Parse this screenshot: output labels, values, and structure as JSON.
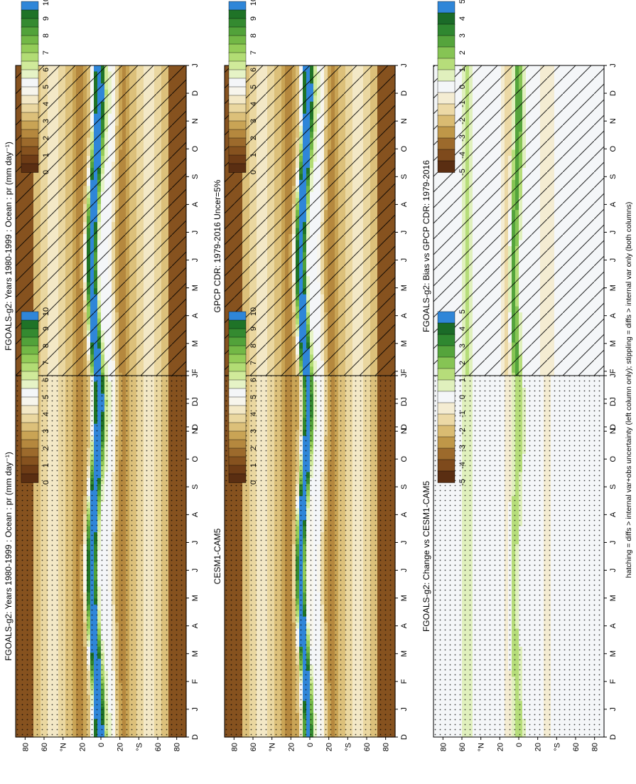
{
  "figure": {
    "footer": "hatching = diffs > internal var+obs uncertainty (left column only); stippling = diffs > internal var only (both columns)"
  },
  "colors": {
    "abs_scale": [
      "#5a2e12",
      "#6e3c16",
      "#86521f",
      "#9c6a2c",
      "#b5883e",
      "#c9a455",
      "#dcc07a",
      "#ead7a0",
      "#f3e8c6",
      "#f7f5ec",
      "#f4f6f8",
      "#e6f3c6",
      "#d0ea9a",
      "#b2dc74",
      "#94cc58",
      "#73b846",
      "#52a23a",
      "#348a30",
      "#1f7327",
      "#2f86d8"
    ],
    "diff_scale": [
      "#5a2e12",
      "#7e4a1c",
      "#9c6a2c",
      "#bf9748",
      "#d9bb72",
      "#ecd9a6",
      "#f4ecd2",
      "#f4f6f8",
      "#e0f0bd",
      "#b6dd7a",
      "#86c454",
      "#55a43c",
      "#2f8730",
      "#1b6b28",
      "#2f86d8"
    ]
  },
  "panels": [
    {
      "title": "FGOALS-g2: Years 1980-1999 : Ocean : pr (mm day⁻¹)",
      "overlay": "hatch",
      "colorbar": {
        "labels": [
          "0",
          "1",
          "2",
          "3",
          "4",
          "5",
          "6",
          "7",
          "8",
          "9",
          "10"
        ]
      },
      "axes": {
        "y_ticks": [
          "80",
          "60",
          "°N",
          "20",
          "0",
          "20",
          "°S",
          "60",
          "80"
        ],
        "x_ticks": [
          "D",
          "J",
          "F",
          "M",
          "A",
          "M",
          "J",
          "J",
          "A",
          "S",
          "O",
          "N",
          "D",
          "J"
        ]
      }
    },
    {
      "title": "FGOALS-g2: Years 1980-1999 : Ocean : pr (mm day⁻¹)",
      "overlay": "stipple",
      "colorbar": {
        "labels": [
          "0",
          "1",
          "2",
          "3",
          "4",
          "5",
          "6",
          "7",
          "8",
          "9",
          "10"
        ]
      },
      "axes": {
        "y_ticks": [
          "80",
          "60",
          "°N",
          "20",
          "0",
          "20",
          "°S",
          "60",
          "80"
        ],
        "x_ticks": [
          "D",
          "J",
          "F",
          "M",
          "A",
          "M",
          "J",
          "J",
          "A",
          "S",
          "O",
          "N",
          "D",
          "J"
        ]
      }
    },
    {
      "title": "GPCP CDR: 1979-2016 Uncer=5%",
      "overlay": "hatch",
      "colorbar": {
        "labels": [
          "0",
          "1",
          "2",
          "3",
          "4",
          "5",
          "6",
          "7",
          "8",
          "9",
          "10"
        ]
      },
      "axes": {
        "y_ticks": [
          "80",
          "60",
          "°N",
          "20",
          "0",
          "20",
          "°S",
          "60",
          "80"
        ],
        "x_ticks": [
          "D",
          "J",
          "F",
          "M",
          "A",
          "M",
          "J",
          "J",
          "A",
          "S",
          "O",
          "N",
          "D",
          "J"
        ]
      }
    },
    {
      "title": "CESM1-CAM5",
      "overlay": "stipple",
      "colorbar": {
        "labels": [
          "0",
          "1",
          "2",
          "3",
          "4",
          "5",
          "6",
          "7",
          "8",
          "9",
          "10"
        ]
      },
      "axes": {
        "y_ticks": [
          "80",
          "60",
          "°N",
          "20",
          "0",
          "20",
          "°S",
          "60",
          "80"
        ],
        "x_ticks": [
          "D",
          "J",
          "F",
          "M",
          "A",
          "M",
          "J",
          "J",
          "A",
          "S",
          "O",
          "N",
          "D",
          "J"
        ]
      }
    },
    {
      "title": "FGOALS-g2: Bias vs GPCP CDR: 1979-2016",
      "overlay": "hatch",
      "colorbar": {
        "labels": [
          "-5",
          "-4",
          "-3",
          "-2",
          "-1",
          "0",
          "1",
          "2",
          "3",
          "4",
          "5"
        ]
      },
      "axes": {
        "y_ticks": [
          "80",
          "60",
          "°N",
          "20",
          "0",
          "20",
          "°S",
          "60",
          "80"
        ],
        "x_ticks": [
          "D",
          "J",
          "F",
          "M",
          "A",
          "M",
          "J",
          "J",
          "A",
          "S",
          "O",
          "N",
          "D",
          "J"
        ]
      }
    },
    {
      "title": "FGOALS-g2: Change vs CESM1-CAM5",
      "overlay": "stipple",
      "colorbar": {
        "labels": [
          "-5",
          "-4",
          "-3",
          "-2",
          "-1",
          "0",
          "1",
          "2",
          "3",
          "4",
          "5"
        ]
      },
      "axes": {
        "y_ticks": [
          "80",
          "60",
          "°N",
          "20",
          "0",
          "20",
          "°S",
          "60",
          "80"
        ],
        "x_ticks": [
          "D",
          "J",
          "F",
          "M",
          "A",
          "M",
          "J",
          "J",
          "A",
          "S",
          "O",
          "N",
          "D",
          "J"
        ]
      }
    }
  ],
  "chart_data": [
    {
      "type": "heatmap",
      "title": "FGOALS-g2: Years 1980-1999 : Ocean : pr (mm day⁻¹)",
      "x": [
        "D",
        "J",
        "F",
        "M",
        "A",
        "M",
        "J",
        "J",
        "A",
        "S",
        "O",
        "N",
        "D",
        "J"
      ],
      "y": [
        "80S",
        "60S",
        "40S",
        "20S",
        "0",
        "20N",
        "40N",
        "60N",
        "80N"
      ],
      "z_range": [
        0,
        10
      ],
      "colorbar_ticks": [
        0,
        1,
        2,
        3,
        4,
        5,
        6,
        7,
        8,
        9,
        10
      ]
    },
    {
      "type": "heatmap",
      "title": "FGOALS-g2: Years 1980-1999 : Ocean : pr (mm day⁻¹)",
      "x": [
        "D",
        "J",
        "F",
        "M",
        "A",
        "M",
        "J",
        "J",
        "A",
        "S",
        "O",
        "N",
        "D",
        "J"
      ],
      "y": [
        "80S",
        "60S",
        "40S",
        "20S",
        "0",
        "20N",
        "40N",
        "60N",
        "80N"
      ],
      "z_range": [
        0,
        10
      ],
      "colorbar_ticks": [
        0,
        1,
        2,
        3,
        4,
        5,
        6,
        7,
        8,
        9,
        10
      ]
    },
    {
      "type": "heatmap",
      "title": "GPCP CDR: 1979-2016 Uncer=5%",
      "x": [
        "D",
        "J",
        "F",
        "M",
        "A",
        "M",
        "J",
        "J",
        "A",
        "S",
        "O",
        "N",
        "D",
        "J"
      ],
      "y": [
        "80S",
        "60S",
        "40S",
        "20S",
        "0",
        "20N",
        "40N",
        "60N",
        "80N"
      ],
      "z_range": [
        0,
        10
      ],
      "colorbar_ticks": [
        0,
        1,
        2,
        3,
        4,
        5,
        6,
        7,
        8,
        9,
        10
      ]
    },
    {
      "type": "heatmap",
      "title": "CESM1-CAM5",
      "x": [
        "D",
        "J",
        "F",
        "M",
        "A",
        "M",
        "J",
        "J",
        "A",
        "S",
        "O",
        "N",
        "D",
        "J"
      ],
      "y": [
        "80S",
        "60S",
        "40S",
        "20S",
        "0",
        "20N",
        "40N",
        "60N",
        "80N"
      ],
      "z_range": [
        0,
        10
      ],
      "colorbar_ticks": [
        0,
        1,
        2,
        3,
        4,
        5,
        6,
        7,
        8,
        9,
        10
      ]
    },
    {
      "type": "heatmap",
      "title": "FGOALS-g2: Bias vs GPCP CDR: 1979-2016",
      "x": [
        "D",
        "J",
        "F",
        "M",
        "A",
        "M",
        "J",
        "J",
        "A",
        "S",
        "O",
        "N",
        "D",
        "J"
      ],
      "y": [
        "80S",
        "60S",
        "40S",
        "20S",
        "0",
        "20N",
        "40N",
        "60N",
        "80N"
      ],
      "z_range": [
        -5,
        5
      ],
      "colorbar_ticks": [
        -5,
        -4,
        -3,
        -2,
        -1,
        0,
        1,
        2,
        3,
        4,
        5
      ]
    },
    {
      "type": "heatmap",
      "title": "FGOALS-g2: Change vs CESM1-CAM5",
      "x": [
        "D",
        "J",
        "F",
        "M",
        "A",
        "M",
        "J",
        "J",
        "A",
        "S",
        "O",
        "N",
        "D",
        "J"
      ],
      "y": [
        "80S",
        "60S",
        "40S",
        "20S",
        "0",
        "20N",
        "40N",
        "60N",
        "80N"
      ],
      "z_range": [
        -5,
        5
      ],
      "colorbar_ticks": [
        -5,
        -4,
        -3,
        -2,
        -1,
        0,
        1,
        2,
        3,
        4,
        5
      ]
    }
  ]
}
